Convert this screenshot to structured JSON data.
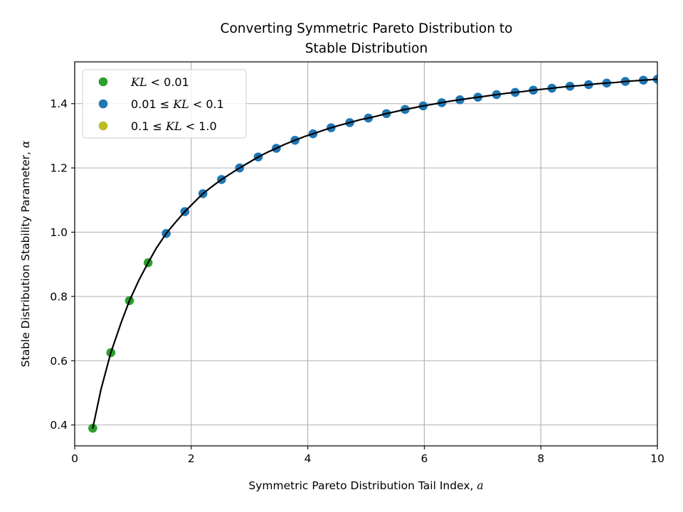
{
  "chart_data": {
    "type": "scatter",
    "title_lines": [
      "Converting Symmetric Pareto Distribution to",
      "Stable Distribution"
    ],
    "xlabel": {
      "text": "Symmetric Pareto Distribution Tail Index, ",
      "symbol": "a"
    },
    "ylabel": {
      "text": "Stable Distribution Stability Parameter, ",
      "symbol": "α"
    },
    "xlim": [
      0,
      10
    ],
    "ylim": [
      0.335,
      1.53
    ],
    "xticks": [
      {
        "value": 0,
        "label": "0"
      },
      {
        "value": 2,
        "label": "2"
      },
      {
        "value": 4,
        "label": "4"
      },
      {
        "value": 6,
        "label": "6"
      },
      {
        "value": 8,
        "label": "8"
      },
      {
        "value": 10,
        "label": "10"
      }
    ],
    "yticks": [
      {
        "value": 0.4,
        "label": "0.4"
      },
      {
        "value": 0.6,
        "label": "0.6"
      },
      {
        "value": 0.8,
        "label": "0.8"
      },
      {
        "value": 1.0,
        "label": "1.0"
      },
      {
        "value": 1.2,
        "label": "1.2"
      },
      {
        "value": 1.4,
        "label": "1.4"
      }
    ],
    "grid": true,
    "legend_position": "top-left",
    "legend": [
      {
        "parts": [
          {
            "t": "KL",
            "i": true
          },
          {
            "t": " < 0.01",
            "i": false
          }
        ],
        "color": "#2ca02c"
      },
      {
        "parts": [
          {
            "t": "0.01 ≤ ",
            "i": false
          },
          {
            "t": "KL",
            "i": true
          },
          {
            "t": " < 0.1",
            "i": false
          }
        ],
        "color": "#1f77b4"
      },
      {
        "parts": [
          {
            "t": "0.1 ≤ ",
            "i": false
          },
          {
            "t": "KL",
            "i": true
          },
          {
            "t": " < 1.0",
            "i": false
          }
        ],
        "color": "#bcbd22"
      }
    ],
    "curve": {
      "color": "#000000",
      "x": [
        0.31,
        0.45,
        0.62,
        0.8,
        0.94,
        1.1,
        1.26,
        1.4,
        1.57,
        1.75,
        1.89,
        2.05,
        2.2,
        2.4,
        2.52,
        2.7,
        2.83,
        3.0,
        3.15,
        3.3,
        3.46,
        3.6,
        3.78,
        3.95,
        4.09,
        4.25,
        4.4,
        4.55,
        4.72,
        4.9,
        5.04,
        5.2,
        5.35,
        5.5,
        5.67,
        5.82,
        5.98,
        6.14,
        6.3,
        6.45,
        6.61,
        6.76,
        6.92,
        7.08,
        7.24,
        7.4,
        7.56,
        7.71,
        7.87,
        8.03,
        8.19,
        8.34,
        8.5,
        8.66,
        8.82,
        8.97,
        9.13,
        9.29,
        9.45,
        9.6,
        9.76,
        9.92,
        10.0
      ],
      "y": [
        0.39,
        0.51,
        0.625,
        0.72,
        0.787,
        0.85,
        0.905,
        0.95,
        0.996,
        1.035,
        1.064,
        1.093,
        1.12,
        1.148,
        1.164,
        1.185,
        1.2,
        1.218,
        1.234,
        1.248,
        1.261,
        1.273,
        1.286,
        1.298,
        1.306,
        1.316,
        1.325,
        1.333,
        1.341,
        1.35,
        1.355,
        1.362,
        1.369,
        1.375,
        1.382,
        1.387,
        1.393,
        1.398,
        1.403,
        1.408,
        1.412,
        1.416,
        1.42,
        1.424,
        1.428,
        1.432,
        1.435,
        1.438,
        1.442,
        1.445,
        1.448,
        1.451,
        1.454,
        1.456,
        1.459,
        1.462,
        1.464,
        1.466,
        1.469,
        1.471,
        1.473,
        1.475,
        1.476
      ]
    },
    "series": [
      {
        "name": "KL < 0.01",
        "color": "#2ca02c",
        "x": [
          0.31,
          0.62,
          0.94,
          1.26
        ],
        "y": [
          0.39,
          0.625,
          0.787,
          0.905
        ]
      },
      {
        "name": "0.01 ≤ KL < 0.1",
        "color": "#1f77b4",
        "x": [
          1.57,
          1.89,
          2.2,
          2.52,
          2.83,
          3.15,
          3.46,
          3.78,
          4.09,
          4.4,
          4.72,
          5.04,
          5.35,
          5.67,
          5.98,
          6.3,
          6.61,
          6.92,
          7.24,
          7.56,
          7.87,
          8.19,
          8.5,
          8.82,
          9.13,
          9.45,
          9.76,
          10.0
        ],
        "y": [
          0.996,
          1.064,
          1.12,
          1.164,
          1.2,
          1.234,
          1.261,
          1.286,
          1.306,
          1.325,
          1.341,
          1.355,
          1.369,
          1.382,
          1.393,
          1.403,
          1.412,
          1.42,
          1.428,
          1.435,
          1.442,
          1.448,
          1.454,
          1.459,
          1.464,
          1.469,
          1.473,
          1.476
        ]
      },
      {
        "name": "0.1 ≤ KL < 1.0",
        "color": "#bcbd22",
        "x": [],
        "y": []
      }
    ]
  }
}
